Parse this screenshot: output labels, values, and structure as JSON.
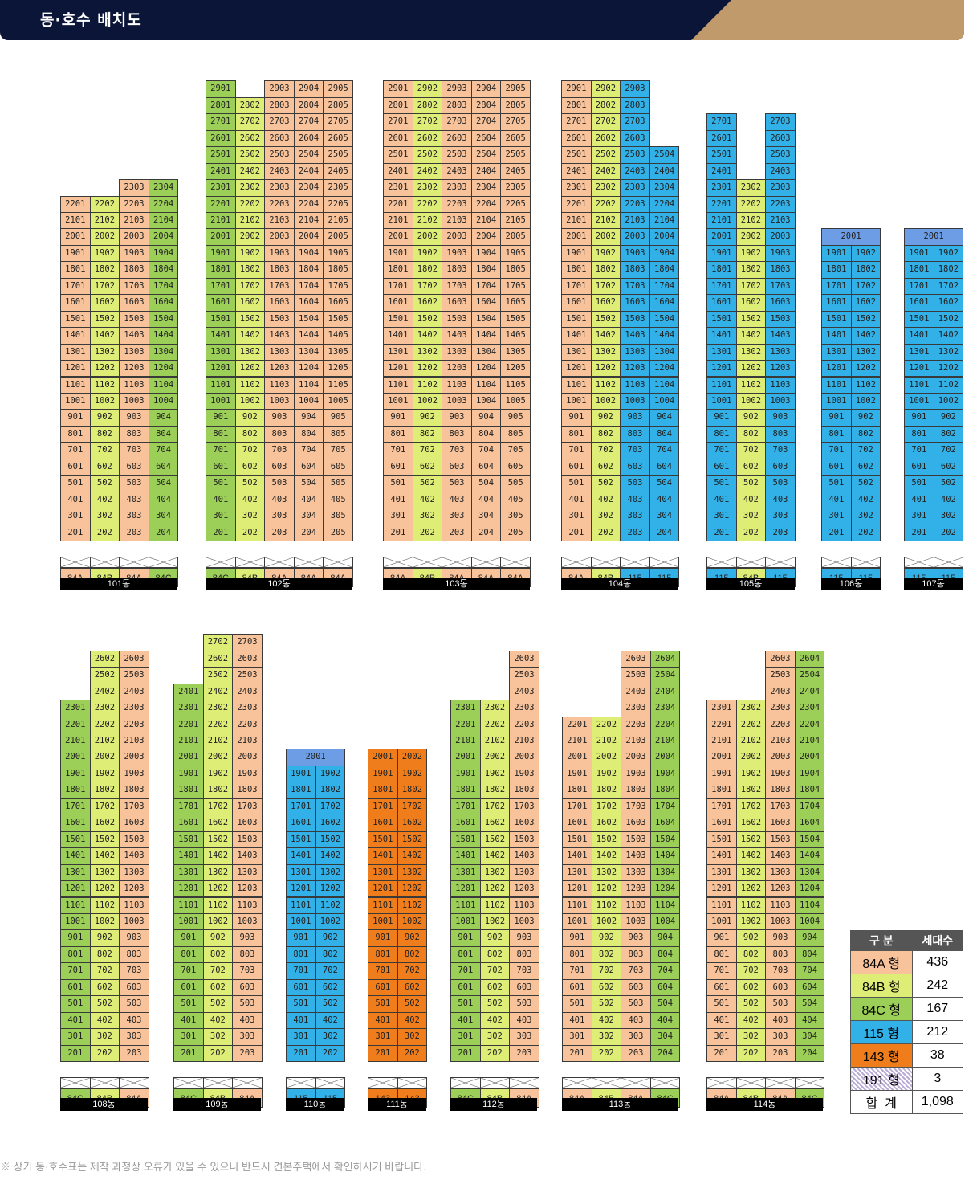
{
  "header": {
    "title": "동·호수 배치도"
  },
  "colors": {
    "84A": "#f8c39b",
    "84B": "#dded76",
    "84C": "#9ccf57",
    "115": "#32b1e8",
    "143": "#ef7d1c",
    "191": "#b8abd6",
    "d2001": "#6d9de4"
  },
  "buildings": [
    {
      "name": "101동",
      "top_floor": 22,
      "extra": [
        {
          "floor": 23,
          "cols": [
            3,
            4
          ]
        }
      ],
      "types": [
        "84A",
        "84B",
        "84A",
        "84C"
      ]
    },
    {
      "name": "102동",
      "top_floor": 28,
      "extra": [
        {
          "floor": 29,
          "cols": [
            1,
            3,
            4,
            5
          ]
        }
      ],
      "types": [
        "84C",
        "84B",
        "84A",
        "84A",
        "84A"
      ]
    },
    {
      "name": "103동",
      "top_floor": 29,
      "extra": [],
      "types": [
        "84A",
        "84B",
        "84A",
        "84A",
        "84A"
      ]
    },
    {
      "name": "104동",
      "top_floor": 24,
      "extra": [
        {
          "floor": 29,
          "cols": [
            1,
            2,
            3
          ]
        },
        {
          "floor": 28,
          "cols": [
            1,
            2,
            3
          ]
        },
        {
          "floor": 27,
          "cols": [
            1,
            2,
            3
          ]
        },
        {
          "floor": 26,
          "cols": [
            1,
            2,
            3
          ]
        },
        {
          "floor": 25,
          "cols": [
            1,
            2,
            3,
            4
          ]
        }
      ],
      "types": [
        "84A",
        "84B",
        "115",
        "115"
      ]
    },
    {
      "name": "105동",
      "top_floor": 23,
      "extra": [
        {
          "floor": 27,
          "cols": [
            1,
            3
          ]
        },
        {
          "floor": 26,
          "cols": [
            1,
            3
          ]
        },
        {
          "floor": 25,
          "cols": [
            1,
            3
          ]
        },
        {
          "floor": 24,
          "cols": [
            1,
            3
          ]
        }
      ],
      "types": [
        "115",
        "84B",
        "115"
      ]
    },
    {
      "name": "106동",
      "top_floor": 19,
      "extra": [
        {
          "floor": 20,
          "span": "2001"
        }
      ],
      "types": [
        "115",
        "115"
      ]
    },
    {
      "name": "107동",
      "top_floor": 19,
      "extra": [
        {
          "floor": 20,
          "span": "2001"
        }
      ],
      "types": [
        "115",
        "115"
      ]
    },
    {
      "name": "108동",
      "top_floor": 23,
      "extra": [
        {
          "floor": 26,
          "cols": [
            2,
            3
          ]
        },
        {
          "floor": 25,
          "cols": [
            2,
            3
          ]
        },
        {
          "floor": 24,
          "cols": [
            2,
            3
          ]
        }
      ],
      "types": [
        "84C",
        "84B",
        "84A"
      ]
    },
    {
      "name": "109동",
      "top_floor": 24,
      "extra": [
        {
          "floor": 27,
          "cols": [
            2,
            3
          ]
        },
        {
          "floor": 26,
          "cols": [
            2,
            3
          ]
        },
        {
          "floor": 25,
          "cols": [
            2,
            3
          ]
        }
      ],
      "types": [
        "84C",
        "84B",
        "84A"
      ]
    },
    {
      "name": "110동",
      "top_floor": 19,
      "extra": [
        {
          "floor": 20,
          "span": "2001"
        }
      ],
      "types": [
        "115",
        "115"
      ]
    },
    {
      "name": "111동",
      "top_floor": 20,
      "extra": [],
      "types": [
        "143",
        "143"
      ]
    },
    {
      "name": "112동",
      "top_floor": 23,
      "extra": [
        {
          "floor": 26,
          "cols": [
            3
          ]
        },
        {
          "floor": 25,
          "cols": [
            3
          ]
        },
        {
          "floor": 24,
          "cols": [
            3
          ]
        }
      ],
      "types": [
        "84C",
        "84B",
        "84A"
      ]
    },
    {
      "name": "113동",
      "top_floor": 22,
      "extra": [
        {
          "floor": 26,
          "cols": [
            3,
            4
          ]
        },
        {
          "floor": 25,
          "cols": [
            3,
            4
          ]
        },
        {
          "floor": 24,
          "cols": [
            3,
            4
          ]
        },
        {
          "floor": 23,
          "cols": [
            3,
            4
          ]
        }
      ],
      "types": [
        "84A",
        "84B",
        "84A",
        "84C"
      ]
    },
    {
      "name": "114동",
      "top_floor": 23,
      "extra": [
        {
          "floor": 26,
          "cols": [
            3,
            4
          ]
        },
        {
          "floor": 25,
          "cols": [
            3,
            4
          ]
        },
        {
          "floor": 24,
          "cols": [
            3,
            4
          ]
        }
      ],
      "types": [
        "84A",
        "84B",
        "84A",
        "84C"
      ]
    }
  ],
  "legend": {
    "headers": [
      "구 분",
      "세대수"
    ],
    "rows": [
      {
        "type": "84A 형",
        "count": "436",
        "key": "84A"
      },
      {
        "type": "84B 형",
        "count": "242",
        "key": "84B"
      },
      {
        "type": "84C 형",
        "count": "167",
        "key": "84C"
      },
      {
        "type": "115 형",
        "count": "212",
        "key": "115"
      },
      {
        "type": "143 형",
        "count": "38",
        "key": "143"
      },
      {
        "type": "191 형",
        "count": "3",
        "key": "191"
      }
    ],
    "total_label": "합  계",
    "total_count": "1,098"
  },
  "note": "※ 상기 동·호수표는 제작 과정상 오류가 있을 수 있으니 반드시 견본주택에서 확인하시기 바랍니다."
}
